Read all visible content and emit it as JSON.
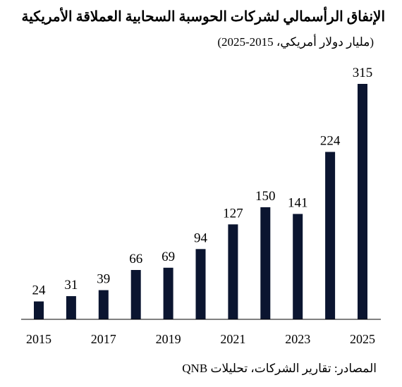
{
  "chart_data": {
    "type": "bar",
    "title": "الإنفاق الرأسمالي لشركات الحوسبة السحابية العملاقة الأمريكية",
    "subtitle": "(مليار دولار أمريكي، 2015-2025)",
    "source": "المصادر: تقارير الشركات، تحليلات QNB",
    "categories": [
      "2015",
      "2016",
      "2017",
      "2018",
      "2019",
      "2020",
      "2021",
      "2022",
      "2023",
      "2024",
      "2025"
    ],
    "values": [
      24,
      31,
      39,
      66,
      69,
      94,
      127,
      150,
      141,
      224,
      315
    ],
    "data_labels": [
      "24",
      "31",
      "39",
      "66",
      "69",
      "94",
      "127",
      "150",
      "141",
      "224",
      "315"
    ],
    "x_tick_labels": [
      "2015",
      "",
      "2017",
      "",
      "2019",
      "",
      "2021",
      "",
      "2023",
      "",
      "2025"
    ],
    "xlabel": "",
    "ylabel": "",
    "ylim": [
      0,
      315
    ],
    "grid": false,
    "legend": "none",
    "bar_color": "#0b1530",
    "axis_color": "#000000"
  }
}
